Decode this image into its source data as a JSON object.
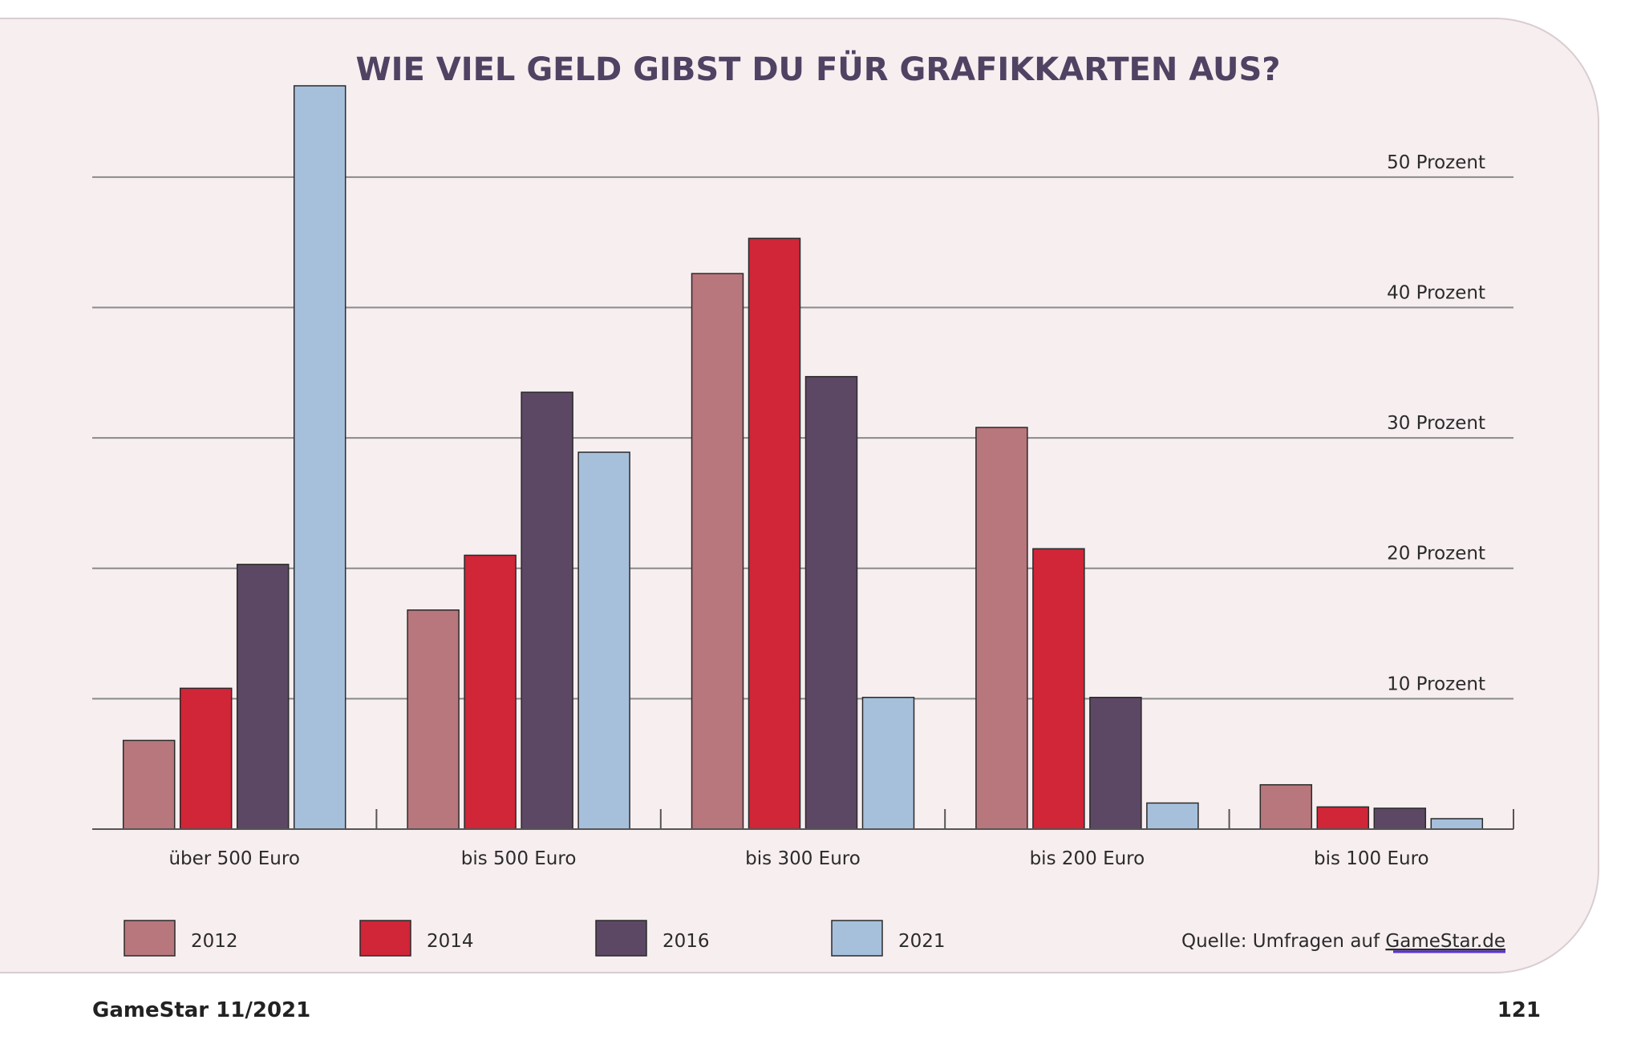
{
  "chart_data": {
    "type": "bar",
    "title": "WIE VIEL GELD GIBST DU FÜR GRAFIKKARTEN AUS?",
    "categories": [
      "über 500 Euro",
      "bis 500 Euro",
      "bis 300 Euro",
      "bis 200 Euro",
      "bis 100 Euro"
    ],
    "series": [
      {
        "name": "2012",
        "color": "#b8777c",
        "values": [
          6.8,
          16.8,
          42.6,
          30.8,
          3.4
        ]
      },
      {
        "name": "2014",
        "color": "#d12538",
        "values": [
          10.8,
          21.0,
          45.3,
          21.5,
          1.7
        ]
      },
      {
        "name": "2016",
        "color": "#5c4864",
        "values": [
          20.3,
          33.5,
          34.7,
          10.1,
          1.6
        ]
      },
      {
        "name": "2021",
        "color": "#a6c0dc",
        "values": [
          57.0,
          28.9,
          10.1,
          2.0,
          0.8
        ]
      }
    ],
    "ylim": [
      0,
      57
    ],
    "yticks": [
      10,
      20,
      30,
      40,
      50
    ],
    "ytick_labels": [
      "10 Prozent",
      "20 Prozent",
      "30 Prozent",
      "40 Prozent",
      "50 Prozent"
    ],
    "grid": true,
    "legend_position": "bottom",
    "xlabel": "",
    "ylabel": ""
  },
  "source": {
    "prefix": "Quelle: Umfragen auf ",
    "link": "GameStar.de"
  },
  "footer": {
    "magazine": "GameStar 11/2021",
    "page": "121"
  }
}
